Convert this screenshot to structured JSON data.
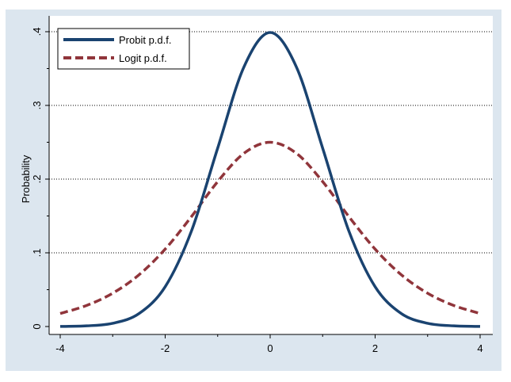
{
  "colors": {
    "outer_background": "#dce6ef",
    "plot_background": "#ffffff",
    "probit": "#1a4370",
    "logit": "#90353b",
    "gridline": "#000000"
  },
  "chart_data": {
    "type": "line",
    "title": "",
    "xlabel": "",
    "ylabel": "Probability",
    "xlim": [
      -4,
      4
    ],
    "ylim": [
      0,
      0.4
    ],
    "grid": true,
    "legend_position": "top-left",
    "x_ticks": [
      {
        "value": -4,
        "label": "-4"
      },
      {
        "value": -2,
        "label": "-2"
      },
      {
        "value": 0,
        "label": "0"
      },
      {
        "value": 2,
        "label": "2"
      },
      {
        "value": 4,
        "label": "4"
      }
    ],
    "y_ticks": [
      {
        "value": 0,
        "label": "0"
      },
      {
        "value": 0.1,
        "label": ".1"
      },
      {
        "value": 0.2,
        "label": ".2"
      },
      {
        "value": 0.3,
        "label": ".3"
      },
      {
        "value": 0.4,
        "label": ".4"
      }
    ],
    "x": [
      -4,
      -3.5,
      -3,
      -2.5,
      -2,
      -1.5,
      -1,
      -0.5,
      0,
      0.5,
      1,
      1.5,
      2,
      2.5,
      3,
      3.5,
      4
    ],
    "series": [
      {
        "name": "Probit p.d.f.",
        "style": "solid",
        "color": "#1a4370",
        "values": [
          0.0001,
          0.0009,
          0.0044,
          0.0175,
          0.054,
          0.1295,
          0.242,
          0.3521,
          0.3989,
          0.3521,
          0.242,
          0.1295,
          0.054,
          0.0175,
          0.0044,
          0.0009,
          0.0001
        ]
      },
      {
        "name": "Logit p.d.f.",
        "style": "dashed",
        "color": "#90353b",
        "values": [
          0.0177,
          0.0285,
          0.0452,
          0.0701,
          0.105,
          0.1491,
          0.1966,
          0.235,
          0.25,
          0.235,
          0.1966,
          0.1491,
          0.105,
          0.0701,
          0.0452,
          0.0285,
          0.0177
        ]
      }
    ]
  }
}
